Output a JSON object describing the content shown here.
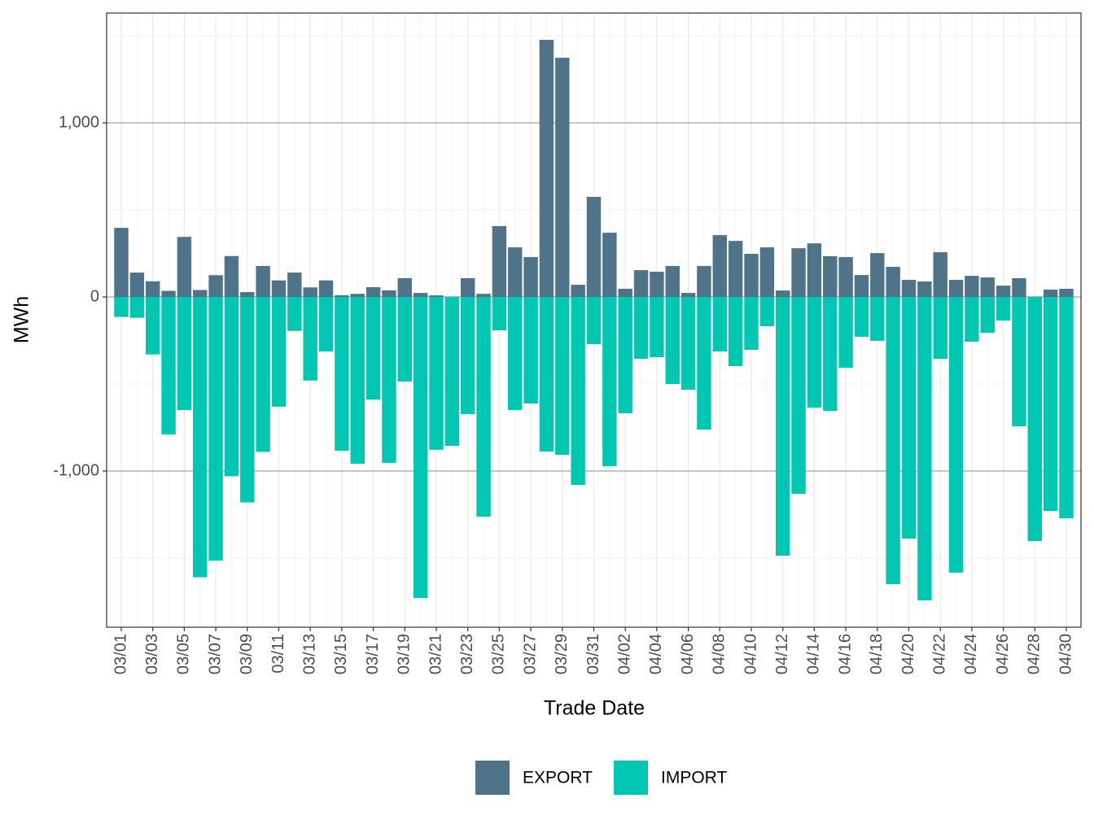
{
  "chart_data": {
    "type": "bar",
    "x_label": "Trade Date",
    "y_label": "MWh",
    "categories": [
      "03/01",
      null,
      "03/03",
      null,
      "03/05",
      null,
      "03/07",
      null,
      "03/09",
      null,
      "03/11",
      null,
      "03/13",
      null,
      "03/15",
      null,
      "03/17",
      null,
      "03/19",
      null,
      "03/21",
      null,
      "03/23",
      null,
      "03/25",
      null,
      "03/27",
      null,
      "03/29",
      null,
      "03/31",
      null,
      "04/02",
      null,
      "04/04",
      null,
      "04/06",
      null,
      "04/08",
      null,
      "04/10",
      null,
      "04/12",
      null,
      "04/14",
      null,
      "04/16",
      null,
      "04/18",
      null,
      "04/20",
      null,
      "04/22",
      null,
      "04/24",
      null,
      "04/26",
      null,
      "04/28",
      null,
      "04/30"
    ],
    "series": [
      {
        "name": "EXPORT",
        "color": "#4f7389",
        "values": [
          397,
          140,
          90,
          35,
          345,
          40,
          125,
          235,
          28,
          178,
          95,
          140,
          55,
          95,
          10,
          18,
          56,
          38,
          108,
          23,
          9,
          2,
          108,
          18,
          407,
          285,
          229,
          1477,
          1374,
          70,
          575,
          369,
          47,
          154,
          145,
          178,
          23,
          178,
          355,
          322,
          248,
          285,
          37,
          280,
          308,
          234,
          229,
          126,
          252,
          173,
          98,
          89,
          257,
          98,
          121,
          112,
          65,
          108,
          2,
          42,
          47
        ]
      },
      {
        "name": "IMPORT",
        "color": "#00c7b1",
        "values": [
          -115,
          -120,
          -330,
          -790,
          -650,
          -1610,
          -1515,
          -1030,
          -1180,
          -890,
          -630,
          -195,
          -480,
          -313,
          -883,
          -958,
          -590,
          -953,
          -486,
          -1729,
          -878,
          -855,
          -673,
          -1262,
          -192,
          -650,
          -612,
          -888,
          -907,
          -1080,
          -271,
          -972,
          -668,
          -355,
          -346,
          -500,
          -533,
          -762,
          -313,
          -397,
          -304,
          -168,
          -1486,
          -1131,
          -636,
          -654,
          -407,
          -229,
          -252,
          -1650,
          -1388,
          -1743,
          -355,
          -1584,
          -257,
          -206,
          -136,
          -743,
          -1402,
          -1229,
          -1271
        ]
      }
    ],
    "ylim": [
      -1897,
      1631
    ],
    "yticks": [
      {
        "value": -1000,
        "label": "-1,000"
      },
      0,
      {
        "value": 1000,
        "label": "1,000"
      }
    ],
    "minor_yticks": [
      -1500,
      -500,
      500,
      1500
    ],
    "grid": true,
    "legend": "bottom"
  }
}
